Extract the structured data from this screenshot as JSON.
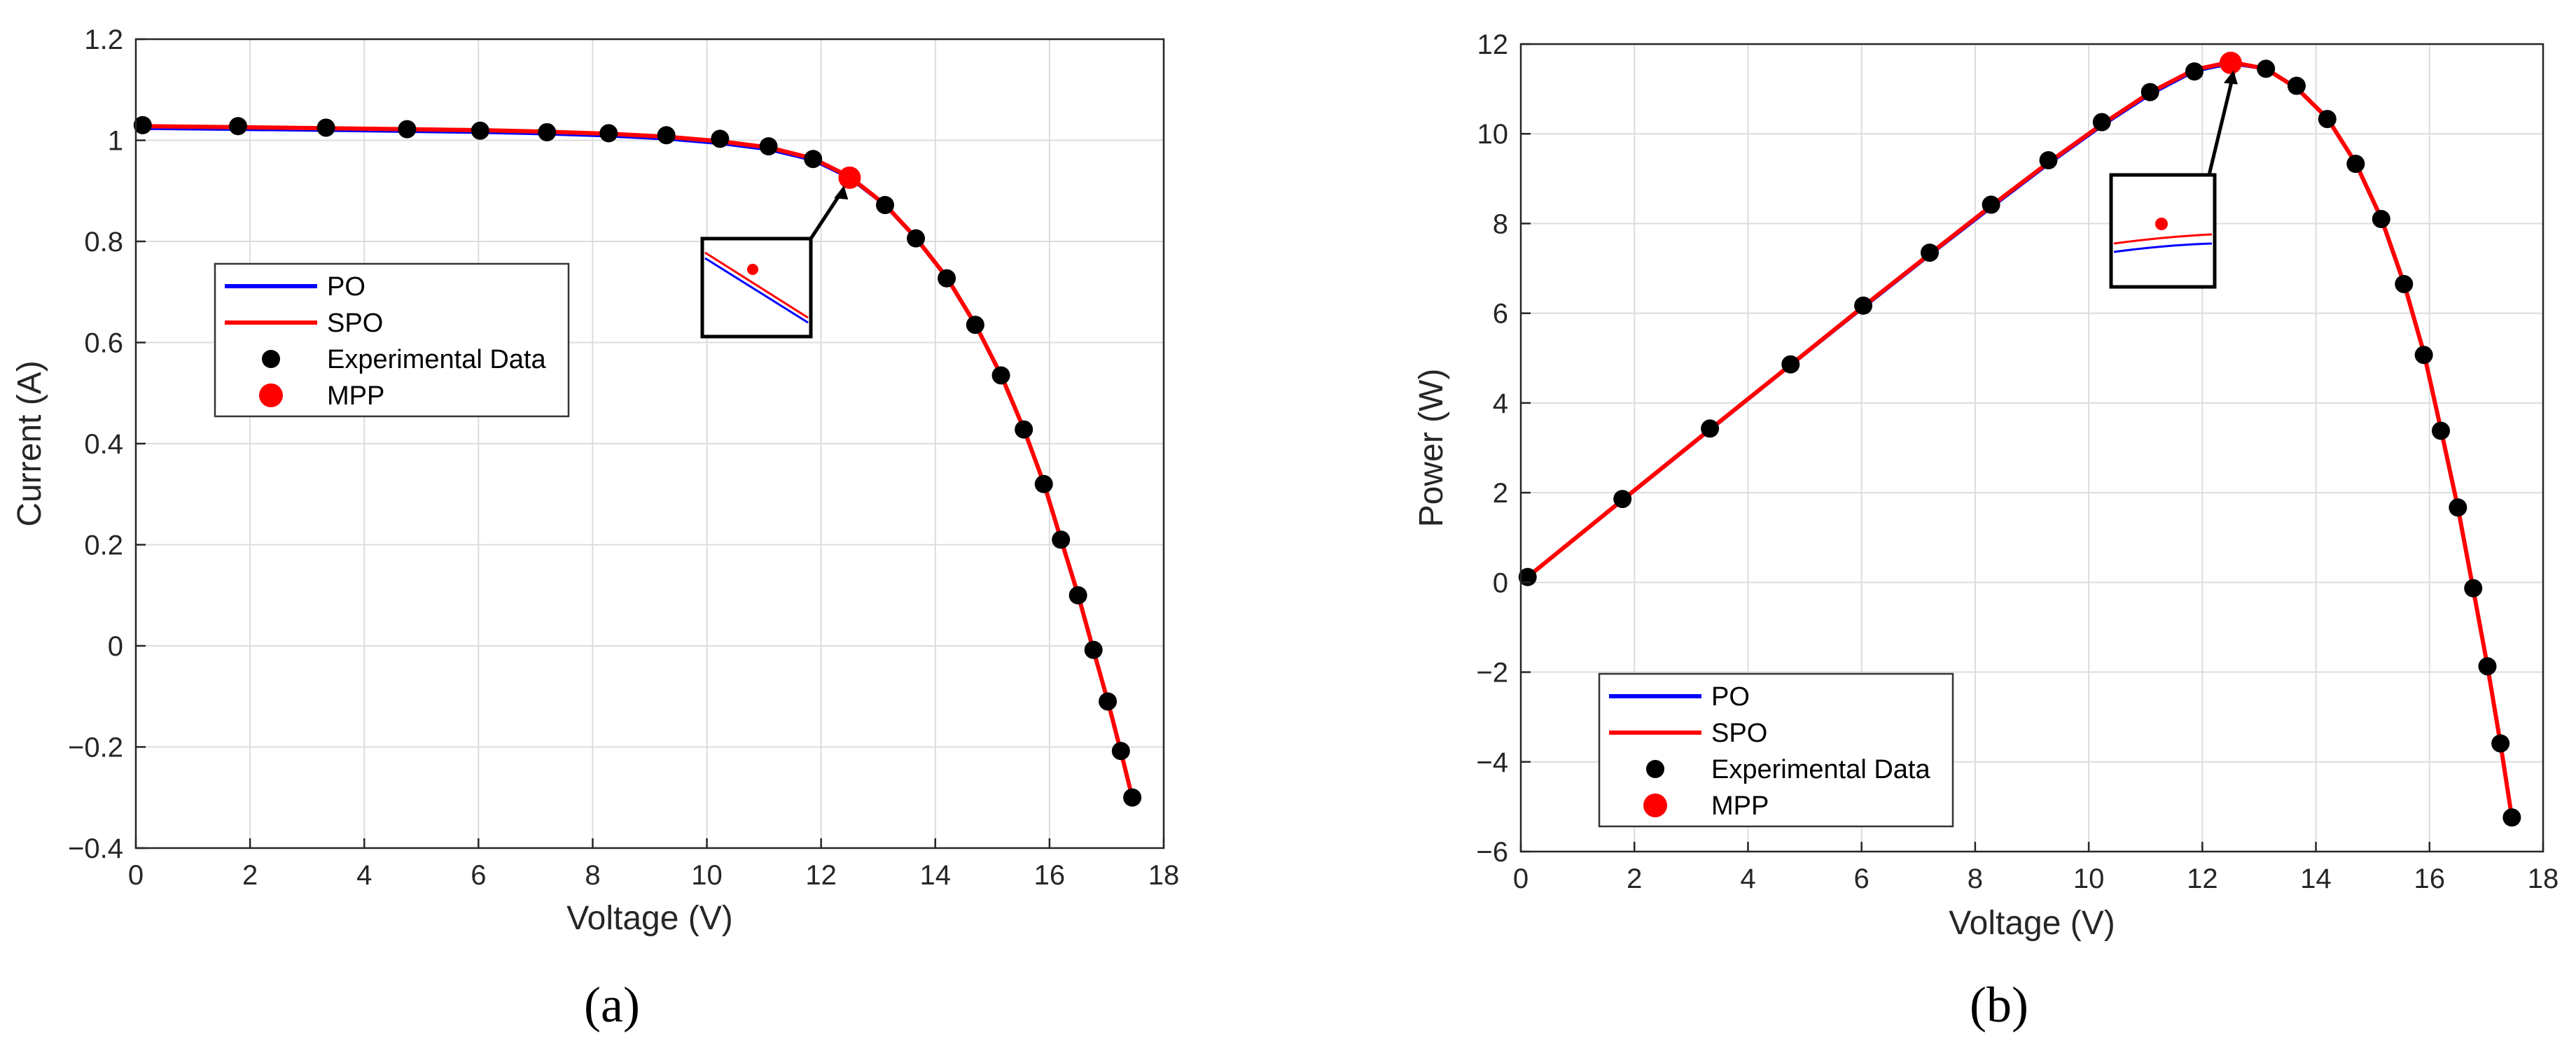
{
  "colors": {
    "po": "#0000ff",
    "spo": "#ff0000",
    "experimental": "#000000",
    "mpp": "#ff0000",
    "grid": "#dcdcdc",
    "axis": "#262626"
  },
  "chart_data": [
    {
      "type": "line",
      "panel_label": "(a)",
      "title": "",
      "xlabel": "Voltage (V)",
      "ylabel": "Current (A)",
      "xlim": [
        0,
        18
      ],
      "ylim": [
        -0.4,
        1.2
      ],
      "grid": true,
      "xticks": [
        0,
        2,
        4,
        6,
        8,
        10,
        12,
        14,
        16,
        18
      ],
      "xtick_labels": [
        "0",
        "2",
        "4",
        "6",
        "8",
        "10",
        "12",
        "14",
        "16",
        "18"
      ],
      "yticks": [
        -0.4,
        -0.2,
        0,
        0.2,
        0.4,
        0.6,
        0.8,
        1,
        1.2
      ],
      "ytick_labels": [
        "−0.4",
        "−0.2",
        "0",
        "0.2",
        "0.4",
        "0.6",
        "0.8",
        "1",
        "1.2"
      ],
      "legend": {
        "placement": "center-left",
        "entries": [
          "PO",
          "SPO",
          "Experimental Data",
          "MPP"
        ]
      },
      "series": [
        {
          "name": "PO",
          "style": "line",
          "color": "#0000ff",
          "x": [
            0.12,
            1.79,
            3.33,
            4.75,
            6.03,
            7.2,
            8.28,
            9.29,
            10.23,
            11.08,
            11.86,
            12.5,
            13.12,
            13.66,
            14.2,
            14.7,
            15.15,
            15.55,
            15.9,
            16.2,
            16.5,
            16.77,
            17.02,
            17.25,
            17.45
          ],
          "y": [
            1.024,
            1.022,
            1.02,
            1.018,
            1.016,
            1.013,
            1.009,
            1.003,
            0.994,
            0.982,
            0.961,
            0.926,
            0.872,
            0.806,
            0.728,
            0.635,
            0.535,
            0.428,
            0.321,
            0.21,
            0.1,
            -0.01,
            -0.11,
            -0.21,
            -0.3
          ]
        },
        {
          "name": "SPO",
          "style": "line",
          "color": "#ff0000",
          "x": [
            0.12,
            1.79,
            3.33,
            4.75,
            6.03,
            7.2,
            8.28,
            9.29,
            10.23,
            11.08,
            11.86,
            12.5,
            13.12,
            13.66,
            14.2,
            14.7,
            15.15,
            15.55,
            15.9,
            16.2,
            16.5,
            16.77,
            17.02,
            17.25,
            17.45
          ],
          "y": [
            1.028,
            1.026,
            1.024,
            1.022,
            1.02,
            1.017,
            1.013,
            1.007,
            0.998,
            0.986,
            0.964,
            0.928,
            0.873,
            0.807,
            0.729,
            0.636,
            0.536,
            0.429,
            0.322,
            0.211,
            0.101,
            -0.009,
            -0.109,
            -0.209,
            -0.3
          ]
        },
        {
          "name": "Experimental Data",
          "style": "markers",
          "color": "#000000",
          "x": [
            0.12,
            1.79,
            3.33,
            4.75,
            6.03,
            7.2,
            8.28,
            9.29,
            10.23,
            11.08,
            11.86,
            13.12,
            13.66,
            14.2,
            14.7,
            15.15,
            15.55,
            15.9,
            16.2,
            16.5,
            16.77,
            17.02,
            17.25,
            17.45
          ],
          "y": [
            1.03,
            1.028,
            1.025,
            1.022,
            1.019,
            1.016,
            1.014,
            1.01,
            1.003,
            0.988,
            0.963,
            0.872,
            0.806,
            0.727,
            0.635,
            0.535,
            0.428,
            0.32,
            0.21,
            0.1,
            -0.008,
            -0.11,
            -0.208,
            -0.3
          ]
        },
        {
          "name": "MPP",
          "style": "markers",
          "color": "#ff0000",
          "x": [
            12.5
          ],
          "y": [
            0.926
          ]
        }
      ],
      "inset": {
        "x": [
          10,
          11.9
        ],
        "y": [
          0.61,
          0.8
        ],
        "annotation_target": [
          12.4,
          0.905
        ]
      }
    },
    {
      "type": "line",
      "panel_label": "(b)",
      "title": "",
      "xlabel": "Voltage (V)",
      "ylabel": "Power (W)",
      "xlim": [
        0,
        18
      ],
      "ylim": [
        -6,
        12
      ],
      "grid": true,
      "xticks": [
        0,
        2,
        4,
        6,
        8,
        10,
        12,
        14,
        16,
        18
      ],
      "xtick_labels": [
        "0",
        "2",
        "4",
        "6",
        "8",
        "10",
        "12",
        "14",
        "16",
        "18"
      ],
      "yticks": [
        -6,
        -4,
        -2,
        0,
        2,
        4,
        6,
        8,
        10,
        12
      ],
      "ytick_labels": [
        "−6",
        "−4",
        "−2",
        "0",
        "2",
        "4",
        "6",
        "8",
        "10",
        "12"
      ],
      "legend": {
        "placement": "bottom-left",
        "entries": [
          "PO",
          "SPO",
          "Experimental Data",
          "MPP"
        ]
      },
      "series": [
        {
          "name": "PO",
          "style": "line",
          "color": "#0000ff",
          "x": [
            0.12,
            1.79,
            3.33,
            4.75,
            6.03,
            7.2,
            8.28,
            9.29,
            10.23,
            11.08,
            11.86,
            12.5,
            13.12,
            13.66,
            14.2,
            14.7,
            15.15,
            15.55,
            15.9,
            16.2,
            16.5,
            16.77,
            17.02,
            17.25,
            17.45
          ],
          "y": [
            0.12,
            1.83,
            3.4,
            4.84,
            6.13,
            7.3,
            8.36,
            9.33,
            10.18,
            10.88,
            11.4,
            11.57,
            11.45,
            11.01,
            10.34,
            9.34,
            8.1,
            6.65,
            5.1,
            3.4,
            1.65,
            -0.17,
            -1.87,
            -3.62,
            -5.24
          ]
        },
        {
          "name": "SPO",
          "style": "line",
          "color": "#ff0000",
          "x": [
            0.12,
            1.79,
            3.33,
            4.75,
            6.03,
            7.2,
            8.28,
            9.29,
            10.23,
            11.08,
            11.86,
            12.5,
            13.12,
            13.66,
            14.2,
            14.7,
            15.15,
            15.55,
            15.9,
            16.2,
            16.5,
            16.77,
            17.02,
            17.25,
            17.45
          ],
          "y": [
            0.12,
            1.84,
            3.41,
            4.85,
            6.15,
            7.32,
            8.39,
            9.36,
            10.21,
            10.92,
            11.43,
            11.6,
            11.45,
            11.02,
            10.35,
            9.35,
            8.12,
            6.67,
            5.12,
            3.42,
            1.67,
            -0.15,
            -1.86,
            -3.6,
            -5.24
          ]
        },
        {
          "name": "Experimental Data",
          "style": "markers",
          "color": "#000000",
          "x": [
            0.12,
            1.79,
            3.33,
            4.75,
            6.03,
            7.2,
            8.28,
            9.29,
            10.23,
            11.08,
            11.86,
            13.12,
            13.66,
            14.2,
            14.7,
            15.15,
            15.55,
            15.9,
            16.2,
            16.5,
            16.77,
            17.02,
            17.25,
            17.45
          ],
          "y": [
            0.12,
            1.86,
            3.43,
            4.86,
            6.17,
            7.35,
            8.42,
            9.41,
            10.26,
            10.93,
            11.39,
            11.45,
            11.07,
            10.33,
            9.33,
            8.1,
            6.65,
            5.07,
            3.38,
            1.67,
            -0.13,
            -1.87,
            -3.59,
            -5.24
          ]
        },
        {
          "name": "MPP",
          "style": "markers",
          "color": "#ff0000",
          "x": [
            12.5
          ],
          "y": [
            11.58
          ]
        }
      ],
      "inset": {
        "x": [
          10.3,
          12.1
        ],
        "y": [
          6.6,
          9.1
        ],
        "annotation_target": [
          12.55,
          11.35
        ]
      }
    }
  ]
}
